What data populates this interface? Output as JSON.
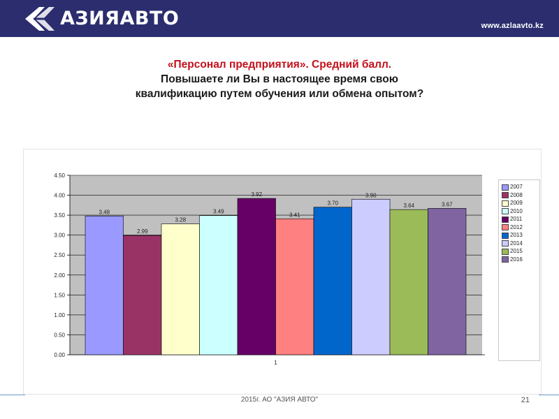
{
  "header": {
    "logo_text": "АЗИЯАВТО",
    "logo_icon": "azia-avto-logo-icon",
    "site_url": "www.azlaavto.kz",
    "background": "#2b2d6e"
  },
  "title": {
    "line1": "«Персонал предприятия». Средний балл.",
    "line2": "Повышаете ли Вы в настоящее время свою",
    "line3": "квалификацию путем обучения или обмена опытом?",
    "line1_color": "#c40f1b"
  },
  "footer": {
    "text": "2015г. АО \"АЗИЯ АВТО\"",
    "page_number": "21"
  },
  "chart_data": {
    "type": "bar",
    "categories": [
      "1"
    ],
    "series": [
      {
        "name": "2007",
        "values": [
          3.48
        ],
        "color": "#9999ff"
      },
      {
        "name": "2008",
        "values": [
          2.99
        ],
        "color": "#993366"
      },
      {
        "name": "2009",
        "values": [
          3.28
        ],
        "color": "#ffffcc"
      },
      {
        "name": "2010",
        "values": [
          3.49
        ],
        "color": "#ccffff"
      },
      {
        "name": "2011",
        "values": [
          3.92
        ],
        "color": "#660066"
      },
      {
        "name": "2012",
        "values": [
          3.41
        ],
        "color": "#ff8080"
      },
      {
        "name": "2013",
        "values": [
          3.7
        ],
        "color": "#0066cc"
      },
      {
        "name": "2014",
        "values": [
          3.9
        ],
        "color": "#ccccff"
      },
      {
        "name": "2015",
        "values": [
          3.64
        ],
        "color": "#9bbb59"
      },
      {
        "name": "2016",
        "values": [
          3.67
        ],
        "color": "#8064a2"
      }
    ],
    "data_labels": [
      "3.48",
      "2.99",
      "3.28",
      "3.49",
      "3.92",
      "3.41",
      "3.70",
      "3.90",
      "3.64",
      "3.67"
    ],
    "y_ticks": [
      "0.00",
      "0.50",
      "1.00",
      "1.50",
      "2.00",
      "2.50",
      "3.00",
      "3.50",
      "4.00",
      "4.50"
    ],
    "ylim": [
      0,
      4.5
    ],
    "grid": true,
    "plot_background": "#c0c0c0",
    "legend_position": "right"
  }
}
